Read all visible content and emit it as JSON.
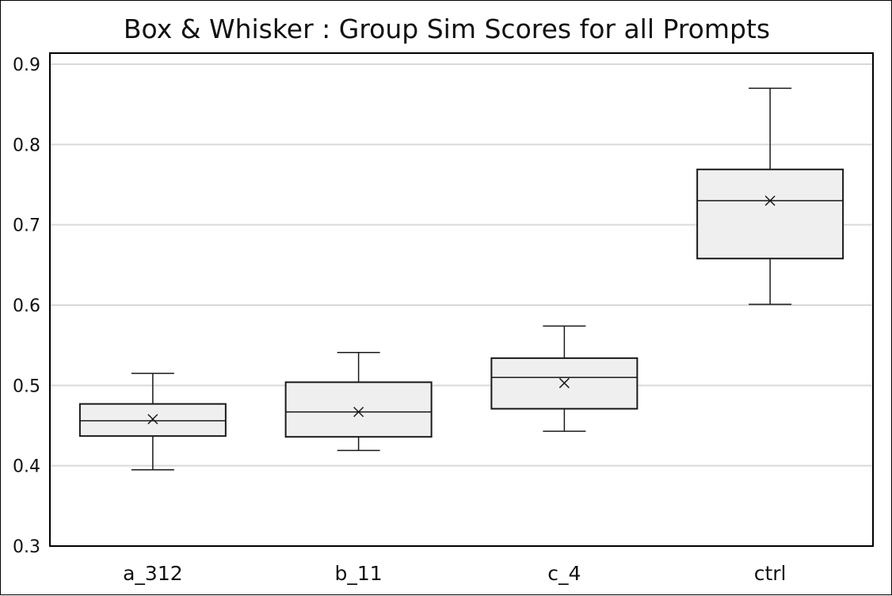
{
  "chart_data": {
    "type": "box",
    "title": "Box & Whisker : Group Sim Scores for all Prompts",
    "xlabel": "",
    "ylabel": "",
    "ylim": [
      0.3,
      0.9
    ],
    "yticks": [
      0.3,
      0.4,
      0.5,
      0.6,
      0.7,
      0.8,
      0.9
    ],
    "categories": [
      "a_312",
      "b_11",
      "c_4",
      "ctrl"
    ],
    "boxes": [
      {
        "category": "a_312",
        "min": 0.395,
        "q1": 0.437,
        "median": 0.456,
        "q3": 0.477,
        "max": 0.515,
        "mean": 0.458
      },
      {
        "category": "b_11",
        "min": 0.419,
        "q1": 0.436,
        "median": 0.467,
        "q3": 0.504,
        "max": 0.541,
        "mean": 0.467
      },
      {
        "category": "c_4",
        "min": 0.443,
        "q1": 0.471,
        "median": 0.51,
        "q3": 0.534,
        "max": 0.574,
        "mean": 0.503
      },
      {
        "category": "ctrl",
        "min": 0.601,
        "q1": 0.658,
        "median": 0.73,
        "q3": 0.769,
        "max": 0.87,
        "mean": 0.73
      }
    ],
    "grid": true,
    "legend": "none",
    "colors": {
      "box_fill": "#efefef",
      "box_stroke": "#1a1a1a",
      "grid": "#d9d9d9",
      "axis": "#000000"
    }
  }
}
